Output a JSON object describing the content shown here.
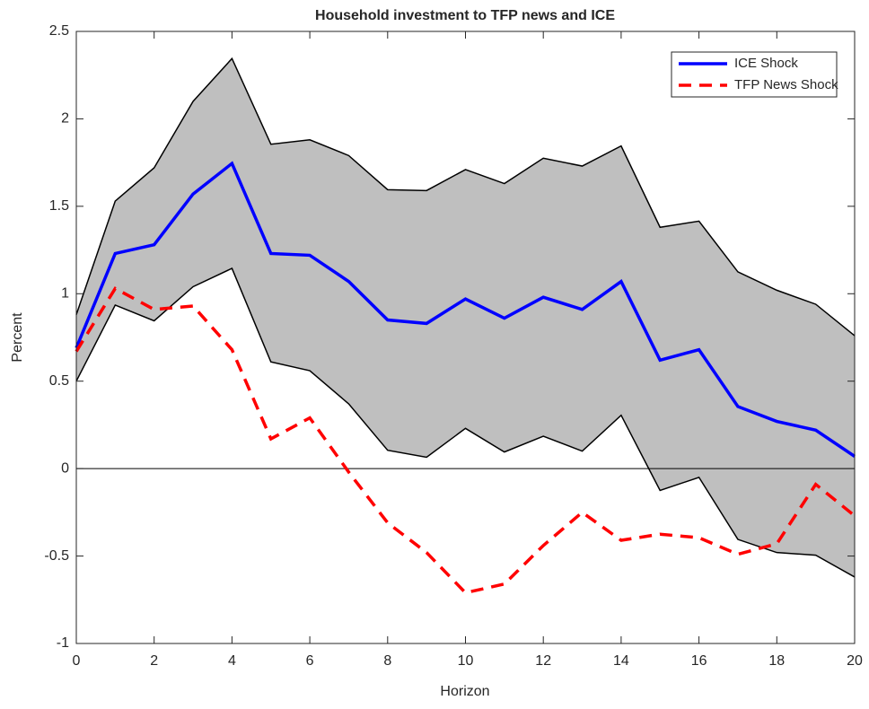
{
  "chart_data": {
    "type": "line",
    "title": "Household investment to TFP news and ICE",
    "x_label": "Horizon",
    "y_label": "Percent",
    "x": [
      0,
      1,
      2,
      3,
      4,
      5,
      6,
      7,
      8,
      9,
      10,
      11,
      12,
      13,
      14,
      15,
      16,
      17,
      18,
      19,
      20
    ],
    "band": {
      "color": "#bfbfbf",
      "upper": [
        0.88,
        1.53,
        1.72,
        2.1,
        2.345,
        1.855,
        1.88,
        1.79,
        1.595,
        1.59,
        1.71,
        1.63,
        1.775,
        1.73,
        1.845,
        1.38,
        1.415,
        1.125,
        1.02,
        0.94,
        0.76
      ],
      "lower": [
        0.5,
        0.935,
        0.845,
        1.04,
        1.145,
        0.61,
        0.56,
        0.37,
        0.105,
        0.065,
        0.23,
        0.095,
        0.185,
        0.1,
        0.305,
        -0.125,
        -0.05,
        -0.405,
        -0.48,
        -0.495,
        -0.62
      ]
    },
    "series": [
      {
        "name": "ICE Shock",
        "color": "#0000ff",
        "dash": false,
        "values": [
          0.69,
          1.23,
          1.28,
          1.57,
          1.745,
          1.23,
          1.22,
          1.07,
          0.85,
          0.83,
          0.97,
          0.86,
          0.98,
          0.91,
          1.07,
          0.62,
          0.68,
          0.355,
          0.27,
          0.22,
          0.07
        ]
      },
      {
        "name": "TFP News Shock",
        "color": "#ff0000",
        "dash": true,
        "values": [
          0.67,
          1.03,
          0.91,
          0.93,
          0.68,
          0.17,
          0.29,
          -0.02,
          -0.31,
          -0.48,
          -0.71,
          -0.66,
          -0.44,
          -0.25,
          -0.41,
          -0.375,
          -0.395,
          -0.49,
          -0.43,
          -0.09,
          -0.27
        ]
      }
    ],
    "xlim": [
      0,
      20
    ],
    "xticks": [
      0,
      2,
      4,
      6,
      8,
      10,
      12,
      14,
      16,
      18,
      20
    ],
    "ylim": [
      -1,
      2.5
    ],
    "yticks": [
      -1,
      -0.5,
      0,
      0.5,
      1,
      1.5,
      2,
      2.5
    ],
    "zero_line": true,
    "legend": "upper right"
  }
}
